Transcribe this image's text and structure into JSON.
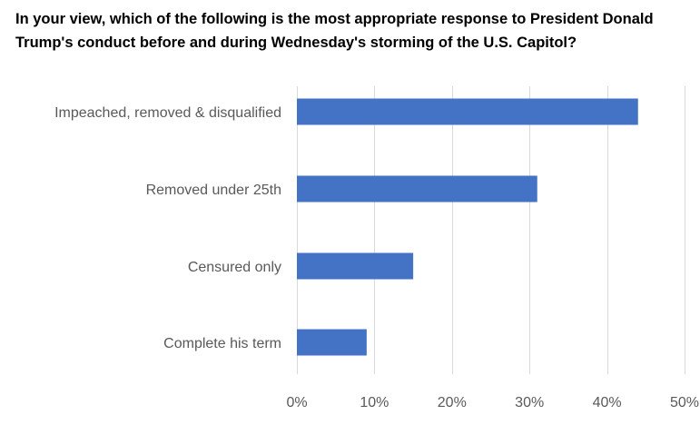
{
  "chart_data": {
    "type": "bar",
    "orientation": "horizontal",
    "title": "In your view, which of the following is the most appropriate response to President Donald Trump's conduct before and during Wednesday's storming of the U.S. Capitol?",
    "xlabel": "",
    "ylabel": "",
    "categories": [
      "Impeached, removed & disqualified",
      "Removed under 25th",
      "Censured only",
      "Complete his term"
    ],
    "values": [
      44,
      31,
      15,
      9
    ],
    "value_format": "percent",
    "xlim": [
      0,
      50
    ],
    "xticks": [
      0,
      10,
      20,
      30,
      40,
      50
    ],
    "xtick_labels": [
      "0%",
      "10%",
      "20%",
      "30%",
      "40%",
      "50%"
    ],
    "grid": true,
    "legend": "none",
    "bar_color": "#4472C4"
  }
}
